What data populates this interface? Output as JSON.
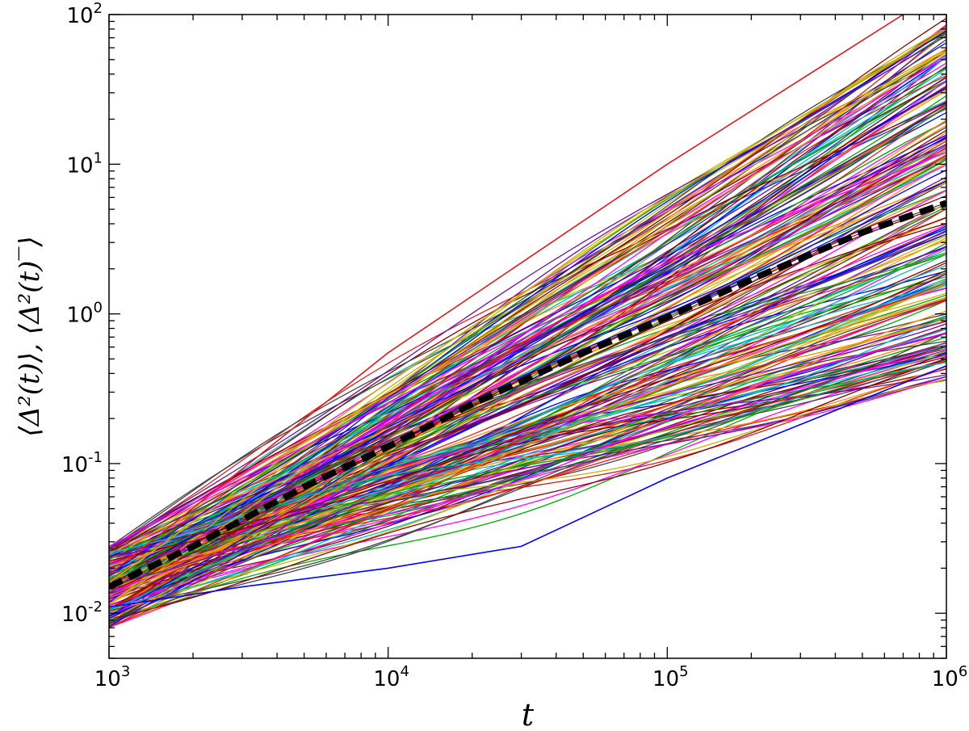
{
  "chart_data": {
    "type": "line",
    "xlabel": "t",
    "ylabel": "⟨Δ²(t)⟩, ⟨Δ²(t)‾⟩",
    "xscale": "log",
    "yscale": "log",
    "xlim": [
      1000,
      1000000
    ],
    "ylim": [
      0.005,
      100
    ],
    "x_ticks": [
      {
        "value": 1000,
        "base": "10",
        "exp": "3"
      },
      {
        "value": 10000,
        "base": "10",
        "exp": "4"
      },
      {
        "value": 100000,
        "base": "10",
        "exp": "5"
      },
      {
        "value": 1000000,
        "base": "10",
        "exp": "6"
      }
    ],
    "y_ticks": [
      {
        "value": 0.01,
        "base": "10",
        "exp": "-2"
      },
      {
        "value": 0.1,
        "base": "10",
        "exp": "-1"
      },
      {
        "value": 1,
        "base": "10",
        "exp": "0"
      },
      {
        "value": 10,
        "base": "10",
        "exp": "1"
      },
      {
        "value": 100,
        "base": "10",
        "exp": "2"
      }
    ],
    "grid": false,
    "legend": "none",
    "ensemble": {
      "count": 230,
      "start_range": [
        0.008,
        0.028
      ],
      "end_range": [
        0.35,
        100
      ],
      "palette": [
        "#e41a1c",
        "#0000ff",
        "#00aa00",
        "#ff00ff",
        "#00bcbc",
        "#c8b400",
        "#ff8c00",
        "#444444",
        "#8b0000",
        "#6a0dad"
      ]
    },
    "series": [
      {
        "role": "mean",
        "color": "#000000",
        "dashed": true,
        "x": [
          1000,
          2000,
          5000,
          10000,
          20000,
          50000,
          100000,
          200000,
          500000,
          1000000
        ],
        "y": [
          0.015,
          0.028,
          0.07,
          0.13,
          0.25,
          0.55,
          0.95,
          1.7,
          3.5,
          5.5
        ]
      },
      {
        "role": "highlight",
        "color": "#e41a1c",
        "x": [
          1000,
          10000,
          100000,
          700000
        ],
        "y": [
          0.018,
          0.55,
          10,
          100
        ]
      },
      {
        "role": "highlight",
        "color": "#c8b400",
        "x": [
          1000,
          10000,
          100000,
          1000000
        ],
        "y": [
          0.016,
          0.35,
          6,
          80
        ]
      },
      {
        "role": "highlight",
        "color": "#0000ff",
        "x": [
          1000,
          3000,
          10000,
          30000,
          100000,
          1000000
        ],
        "y": [
          0.011,
          0.015,
          0.02,
          0.028,
          0.08,
          0.45
        ]
      },
      {
        "role": "highlight",
        "color": "#ff00ff",
        "x": [
          1000,
          5000,
          20000,
          100000,
          1000000
        ],
        "y": [
          0.028,
          0.13,
          0.5,
          2.2,
          12
        ]
      }
    ]
  }
}
